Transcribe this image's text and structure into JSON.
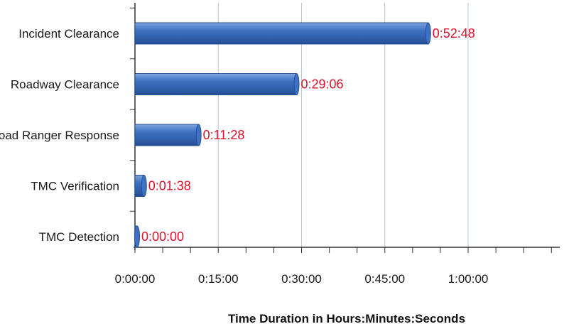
{
  "chart_data": {
    "type": "bar",
    "orientation": "horizontal",
    "categories": [
      "Incident Clearance",
      "Roadway Clearance",
      "Road Ranger Response",
      "TMC Verification",
      "TMC Detection"
    ],
    "values": [
      3168,
      1746,
      688,
      98,
      0
    ],
    "value_labels": [
      "0:52:48",
      "0:29:06",
      "0:11:28",
      "0:01:38",
      "0:00:00"
    ],
    "xlabel": "Time Duration  in Hours:Minutes:Seconds",
    "ylabel": "",
    "xlim": [
      0,
      4590
    ],
    "xticks": [
      0,
      900,
      1800,
      2700,
      3600
    ],
    "xtick_labels": [
      "0:00:00",
      "0:15:00",
      "0:30:00",
      "0:45:00",
      "1:00:00"
    ],
    "minor_tick_step": 300,
    "grid": true,
    "legend": "none",
    "colors": {
      "bar": "#3f72c4",
      "bar_dark": "#244f96",
      "bar_light": "#7ea6e0",
      "data_label": "#e0102a",
      "grid": "#b9c6d4"
    }
  }
}
